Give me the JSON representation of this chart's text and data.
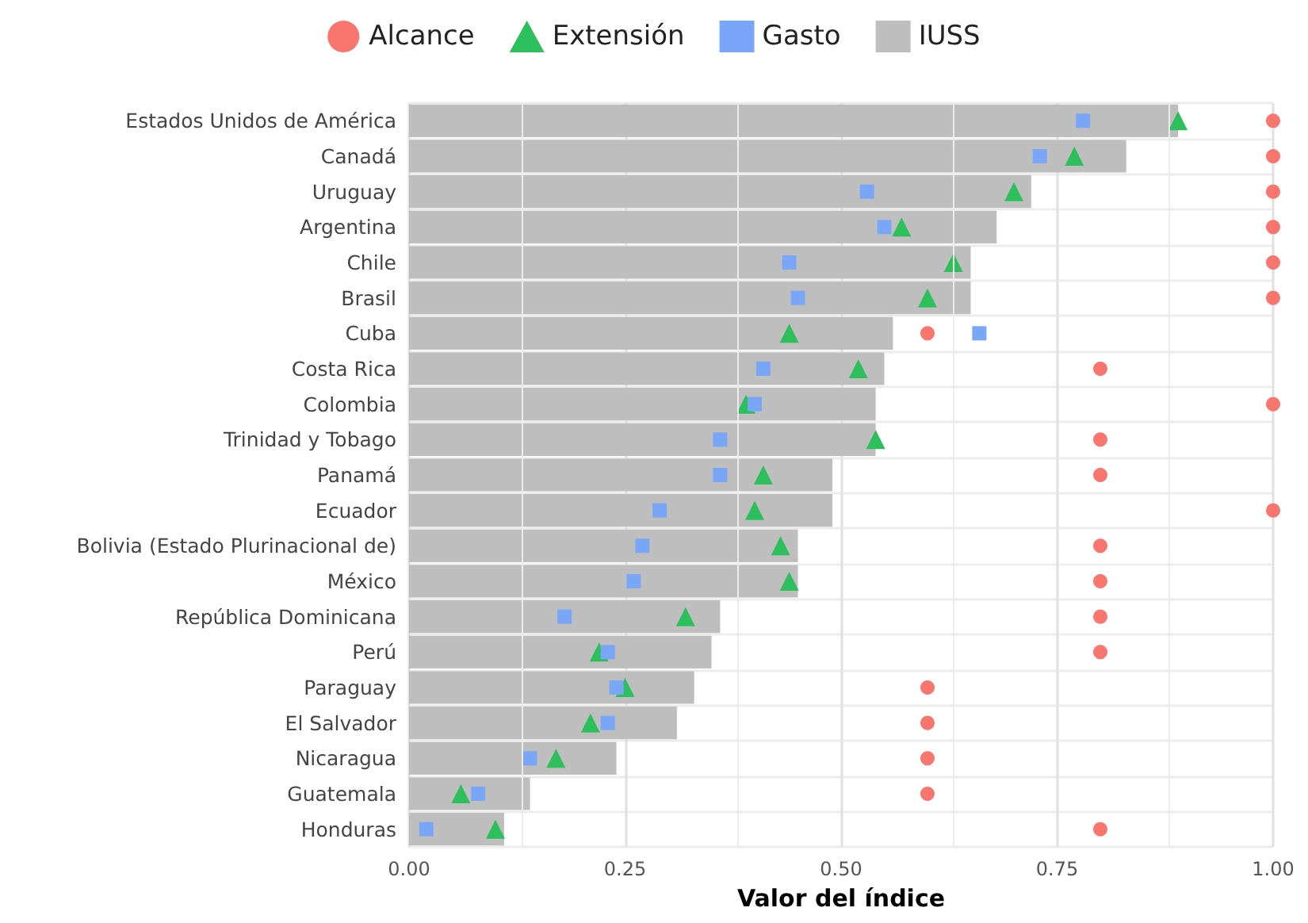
{
  "chart_data": {
    "type": "bar",
    "orientation": "horizontal",
    "xlabel": "Valor del índice",
    "categories": [
      "Estados Unidos de América",
      "Canadá",
      "Uruguay",
      "Argentina",
      "Chile",
      "Brasil",
      "Cuba",
      "Costa Rica",
      "Colombia",
      "Trinidad y Tobago",
      "Panamá",
      "Ecuador",
      "Bolivia (Estado Plurinacional de)",
      "México",
      "República Dominicana",
      "Perú",
      "Paraguay",
      "El Salvador",
      "Nicaragua",
      "Guatemala",
      "Honduras"
    ],
    "series": [
      {
        "name": "Alcance",
        "type": "scatter",
        "marker": "circle",
        "color": "#f8766d",
        "values": [
          1,
          1,
          1,
          1,
          1,
          1,
          0.6,
          0.8,
          1,
          0.8,
          0.8,
          1,
          0.8,
          0.8,
          0.8,
          0.8,
          0.6,
          0.6,
          0.6,
          0.6,
          0.8
        ]
      },
      {
        "name": "Extensión",
        "type": "scatter",
        "marker": "triangle",
        "color": "#2dbf5c",
        "values": [
          0.89,
          0.77,
          0.7,
          0.57,
          0.63,
          0.6,
          0.44,
          0.52,
          0.39,
          0.54,
          0.41,
          0.4,
          0.43,
          0.44,
          0.32,
          0.22,
          0.25,
          0.21,
          0.17,
          0.06,
          0.1
        ]
      },
      {
        "name": "Gasto",
        "type": "scatter",
        "marker": "square",
        "color": "#7aa6f8",
        "values": [
          0.78,
          0.73,
          0.53,
          0.55,
          0.44,
          0.45,
          0.66,
          0.41,
          0.4,
          0.36,
          0.36,
          0.29,
          0.27,
          0.26,
          0.18,
          0.23,
          0.24,
          0.23,
          0.14,
          0.08,
          0.02
        ]
      },
      {
        "name": "IUSS",
        "color": "#bebebe",
        "values": [
          0.89,
          0.83,
          0.72,
          0.68,
          0.65,
          0.65,
          0.56,
          0.55,
          0.54,
          0.54,
          0.49,
          0.49,
          0.45,
          0.45,
          0.36,
          0.35,
          0.33,
          0.31,
          0.24,
          0.14,
          0.11
        ]
      }
    ],
    "xlim": [
      0,
      1
    ],
    "xticks": [
      {
        "value": 0,
        "label": "0.00"
      },
      {
        "value": 0.25,
        "label": "0.25"
      },
      {
        "value": 0.5,
        "label": "0.50"
      },
      {
        "value": 0.75,
        "label": "0.75"
      },
      {
        "value": 1,
        "label": "1.00"
      }
    ],
    "grid": true,
    "legend": "top"
  }
}
